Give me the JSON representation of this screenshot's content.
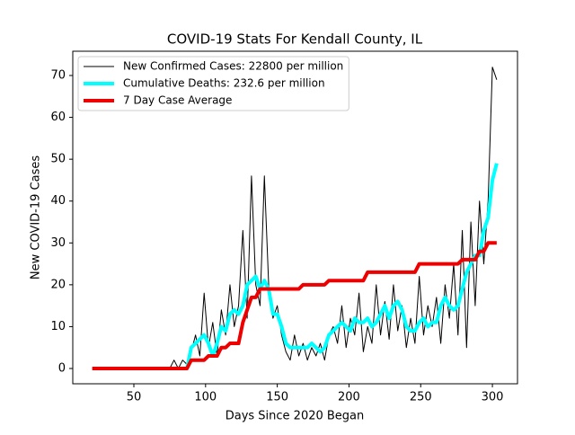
{
  "chart_data": {
    "type": "line",
    "title": "COVID-19 Stats For Kendall County, IL",
    "xlabel": "Days Since 2020 Began",
    "ylabel": "New COVID-19 Cases",
    "x": [
      21,
      24,
      27,
      30,
      33,
      36,
      39,
      42,
      45,
      48,
      51,
      54,
      57,
      60,
      63,
      66,
      69,
      72,
      75,
      78,
      81,
      84,
      87,
      90,
      93,
      96,
      99,
      102,
      105,
      108,
      111,
      114,
      117,
      120,
      123,
      126,
      129,
      132,
      135,
      138,
      141,
      144,
      147,
      150,
      153,
      156,
      159,
      162,
      165,
      168,
      171,
      174,
      177,
      180,
      183,
      186,
      189,
      192,
      195,
      198,
      201,
      204,
      207,
      210,
      213,
      216,
      219,
      222,
      225,
      228,
      231,
      234,
      237,
      240,
      243,
      246,
      249,
      252,
      255,
      258,
      261,
      264,
      267,
      270,
      273,
      276,
      279,
      282,
      285,
      288,
      291,
      294,
      297,
      300,
      303
    ],
    "series": [
      {
        "name": "New Confirmed Cases: 22800 per million",
        "color": "#000000",
        "width": 1,
        "values": [
          0,
          0,
          0,
          0,
          0,
          0,
          0,
          0,
          0,
          0,
          0,
          0,
          0,
          0,
          0,
          0,
          0,
          0,
          0,
          2,
          0,
          2,
          1,
          4,
          8,
          3,
          18,
          5,
          11,
          3,
          14,
          8,
          20,
          10,
          15,
          33,
          12,
          46,
          20,
          15,
          46,
          20,
          12,
          15,
          8,
          4,
          2,
          8,
          3,
          6,
          2,
          5,
          3,
          6,
          2,
          8,
          10,
          6,
          15,
          5,
          12,
          8,
          18,
          4,
          10,
          6,
          20,
          8,
          16,
          7,
          20,
          9,
          15,
          5,
          12,
          6,
          22,
          8,
          15,
          10,
          17,
          6,
          20,
          12,
          25,
          8,
          33,
          5,
          35,
          15,
          40,
          25,
          40,
          72,
          69
        ]
      },
      {
        "name": "Cumulative Deaths: 232.6 per million",
        "color": "#00ffff",
        "width": 4,
        "values": [
          0,
          0,
          0,
          0,
          0,
          0,
          0,
          0,
          0,
          0,
          0,
          0,
          0,
          0,
          0,
          0,
          0,
          0,
          0,
          0,
          0,
          0,
          0,
          5,
          6,
          7,
          8,
          6,
          3,
          6,
          10,
          9,
          13,
          14,
          13,
          15,
          20,
          21,
          22,
          19,
          21,
          19,
          13,
          13,
          10,
          6,
          5,
          5,
          5,
          5,
          5,
          6,
          5,
          4,
          5,
          8,
          9,
          10,
          11,
          10,
          9,
          12,
          11,
          11,
          12,
          10,
          11,
          13,
          15,
          12,
          15,
          16,
          14,
          10,
          9,
          9,
          11,
          12,
          10,
          11,
          11,
          15,
          17,
          15,
          14,
          15,
          19,
          23,
          25,
          27,
          27,
          33,
          36,
          45,
          49
        ]
      },
      {
        "name": "7 Day Case Average",
        "color": "#ee0000",
        "width": 4,
        "values": [
          0,
          0,
          0,
          0,
          0,
          0,
          0,
          0,
          0,
          0,
          0,
          0,
          0,
          0,
          0,
          0,
          0,
          0,
          0,
          0,
          0,
          0,
          0,
          2,
          2,
          2,
          2,
          3,
          3,
          3,
          5,
          5,
          6,
          6,
          6,
          11,
          14,
          17,
          17,
          19,
          19,
          19,
          19,
          19,
          19,
          19,
          19,
          19,
          19,
          20,
          20,
          20,
          20,
          20,
          20,
          21,
          21,
          21,
          21,
          21,
          21,
          21,
          21,
          21,
          23,
          23,
          23,
          23,
          23,
          23,
          23,
          23,
          23,
          23,
          23,
          23,
          25,
          25,
          25,
          25,
          25,
          25,
          25,
          25,
          25,
          25,
          26,
          26,
          26,
          26,
          28,
          28,
          30,
          30,
          30
        ]
      }
    ],
    "xlim": [
      7.4,
      317.5
    ],
    "ylim": [
      -3.65,
      75.8
    ],
    "xticks": [
      50,
      100,
      150,
      200,
      250,
      300
    ],
    "yticks": [
      0,
      10,
      20,
      30,
      40,
      50,
      60,
      70
    ],
    "legend": "upper left"
  }
}
